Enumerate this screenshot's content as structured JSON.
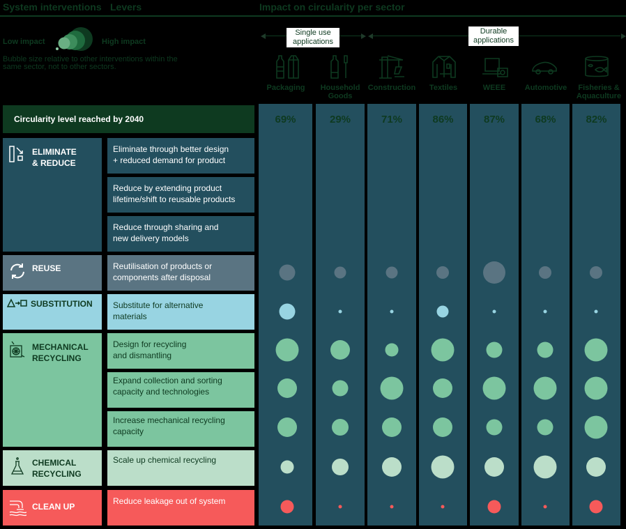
{
  "header": {
    "system_interventions": "System interventions",
    "levers": "Levers",
    "impact_title": "Impact on circularity per sector"
  },
  "legend": {
    "low": "Low impact",
    "high": "High impact",
    "note": "Bubble size relative to other interventions within the same sector, not to other sectors."
  },
  "applications": {
    "single_use": "Single use applications",
    "durable": "Durable applications"
  },
  "circularity_label": "Circularity level reached by 2040",
  "colors": {
    "column_bg": "#234f5e",
    "dark_green": "#0e3a20",
    "eliminate": "#234f5e",
    "reuse": "#5a7482",
    "substitution": "#98d4e2",
    "mechanical": "#7cc59f",
    "chemical": "#bbdec9",
    "cleanup": "#f65a5a"
  },
  "categories": [
    {
      "name": "ELIMINATE & REDUCE",
      "line1": "ELIMINATE",
      "line2": "& REDUCE",
      "icon": "eliminate-reduce-icon"
    },
    {
      "name": "REUSE",
      "line1": "REUSE",
      "line2": "",
      "icon": "reuse-cycle-icon"
    },
    {
      "name": "SUBSTITUTION",
      "line1": "SUBSTITUTION",
      "line2": "",
      "icon": "substitution-icon"
    },
    {
      "name": "MECHANICAL RECYCLING",
      "line1": "MECHANICAL",
      "line2": "RECYCLING",
      "icon": "mechanical-recycling-icon"
    },
    {
      "name": "CHEMICAL RECYCLING",
      "line1": "CHEMICAL",
      "line2": "RECYCLING",
      "icon": "flask-icon"
    },
    {
      "name": "CLEAN UP",
      "line1": "CLEAN UP",
      "line2": "",
      "icon": "pipe-leak-icon"
    }
  ],
  "levers": [
    {
      "l1": "Eliminate through better design",
      "l2": "+ reduced demand for product"
    },
    {
      "l1": "Reduce by extending product",
      "l2": "lifetime/shift to reusable products"
    },
    {
      "l1": "Reduce through sharing and",
      "l2": "new delivery models"
    },
    {
      "l1": "Reutilisation of products or",
      "l2": "components after disposal"
    },
    {
      "l1": "Substitute for alternative",
      "l2": "materials"
    },
    {
      "l1": "Design for recycling",
      "l2": "and dismantling"
    },
    {
      "l1": "Expand collection and sorting",
      "l2": "capacity and technologies"
    },
    {
      "l1": "Increase mechanical recycling",
      "l2": "capacity"
    },
    {
      "l1": "Scale up chemical recycling",
      "l2": ""
    },
    {
      "l1": "Reduce leakage out of system",
      "l2": ""
    }
  ],
  "sectors": [
    {
      "name": "Packaging",
      "line2": "",
      "pct": "69%",
      "icon": "bottle-carton-icon"
    },
    {
      "name": "Household",
      "line2": "Goods",
      "pct": "29%",
      "icon": "bottle-toothbrush-icon"
    },
    {
      "name": "Construction",
      "line2": "",
      "pct": "71%",
      "icon": "crane-icon"
    },
    {
      "name": "Textiles",
      "line2": "",
      "pct": "86%",
      "icon": "jacket-icon"
    },
    {
      "name": "WEEE",
      "line2": "",
      "pct": "87%",
      "icon": "laptop-camera-icon"
    },
    {
      "name": "Automotive",
      "line2": "",
      "pct": "68%",
      "icon": "car-icon"
    },
    {
      "name": "Fisheries &",
      "line2": "Aquaculture",
      "pct": "82%",
      "icon": "fish-tank-icon"
    }
  ],
  "chart_data": {
    "type": "bubble-matrix",
    "title": "Impact on circularity per sector",
    "categories": [
      "Packaging",
      "Household Goods",
      "Construction",
      "Textiles",
      "WEEE",
      "Automotive",
      "Fisheries & Aquaculture"
    ],
    "circularity_2040": [
      69,
      29,
      71,
      86,
      87,
      68,
      82
    ],
    "size_scale": "bubble diameter in px (relative within sector)",
    "series": [
      {
        "name": "Eliminate through better design + reduced demand for product",
        "group": "ELIMINATE & REDUCE",
        "values": [
          0,
          0,
          0,
          0,
          0,
          0,
          0
        ]
      },
      {
        "name": "Reduce by extending product lifetime/shift to reusable products",
        "group": "ELIMINATE & REDUCE",
        "values": [
          0,
          0,
          0,
          0,
          0,
          0,
          0
        ]
      },
      {
        "name": "Reduce through sharing and new delivery models",
        "group": "ELIMINATE & REDUCE",
        "values": [
          0,
          0,
          0,
          0,
          0,
          0,
          0
        ]
      },
      {
        "name": "Reutilisation of products or components after disposal",
        "group": "REUSE",
        "values": [
          23,
          17,
          17,
          18,
          32,
          18,
          18
        ]
      },
      {
        "name": "Substitute for alternative materials",
        "group": "SUBSTITUTION",
        "values": [
          23,
          5,
          5,
          17,
          5,
          5,
          5
        ]
      },
      {
        "name": "Design for recycling and dismantling",
        "group": "MECHANICAL RECYCLING",
        "values": [
          33,
          28,
          19,
          33,
          23,
          23,
          33
        ]
      },
      {
        "name": "Expand collection and sorting capacity and technologies",
        "group": "MECHANICAL RECYCLING",
        "values": [
          28,
          23,
          33,
          28,
          33,
          33,
          33
        ]
      },
      {
        "name": "Increase mechanical recycling capacity",
        "group": "MECHANICAL RECYCLING",
        "values": [
          28,
          24,
          28,
          28,
          23,
          23,
          33
        ]
      },
      {
        "name": "Scale up chemical recycling",
        "group": "CHEMICAL RECYCLING",
        "values": [
          19,
          24,
          28,
          33,
          28,
          33,
          28
        ]
      },
      {
        "name": "Reduce leakage out of system",
        "group": "CLEAN UP",
        "values": [
          19,
          5,
          5,
          5,
          19,
          5,
          19
        ]
      }
    ],
    "legend": [
      "Low impact",
      "High impact"
    ],
    "note": "Bubble size relative to other interventions within the same sector, not to other sectors."
  }
}
